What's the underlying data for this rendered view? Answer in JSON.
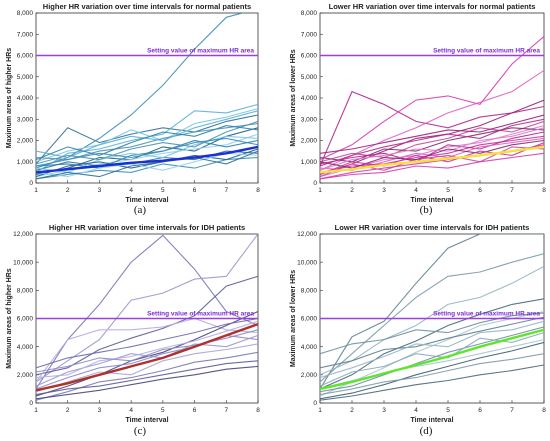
{
  "chart_data": [
    {
      "type": "line",
      "panel_label": "(a)",
      "title": "Higher HR variation over time intervals for normal patients",
      "xlabel": "Time interval",
      "ylabel": "Maximum areas of higher HRs",
      "xlim": [
        1,
        8
      ],
      "ylim": [
        0,
        8000
      ],
      "yticks": [
        "0",
        "1,000",
        "2,000",
        "3,000",
        "4,000",
        "5,000",
        "6,000",
        "7,000",
        "8,000"
      ],
      "xticks": [
        "1",
        "2",
        "3",
        "4",
        "5",
        "6",
        "7",
        "8"
      ],
      "grid": false,
      "threshold": {
        "value": 6000,
        "label": "Setting value of maximum HR area",
        "color": "#9b3fe0"
      },
      "palette": [
        "#2f6f96",
        "#3b8cb8",
        "#5ab0d6",
        "#78c6e6",
        "#1d5f86",
        "#4b92ad",
        "#96d2ea",
        "#2a7fae"
      ],
      "series": [
        {
          "values": [
            900,
            2600,
            1900,
            2300,
            2600,
            2400,
            2900,
            3200
          ]
        },
        {
          "values": [
            700,
            1200,
            2100,
            3200,
            4600,
            6300,
            7800,
            8200
          ]
        },
        {
          "values": [
            500,
            1400,
            1600,
            2000,
            2300,
            3400,
            3300,
            3700
          ]
        },
        {
          "values": [
            1000,
            1500,
            1800,
            2500,
            2000,
            2800,
            3100,
            3500
          ]
        },
        {
          "values": [
            400,
            700,
            1200,
            1100,
            1700,
            1500,
            2200,
            2600
          ]
        },
        {
          "values": [
            1200,
            1100,
            1500,
            1700,
            2100,
            2400,
            2600,
            2800
          ]
        },
        {
          "values": [
            300,
            600,
            900,
            1100,
            1400,
            1600,
            1800,
            2300
          ]
        },
        {
          "values": [
            800,
            900,
            700,
            1300,
            1500,
            2000,
            1700,
            2000
          ]
        },
        {
          "values": [
            600,
            1000,
            800,
            900,
            1200,
            1100,
            1500,
            1400
          ]
        },
        {
          "values": [
            200,
            400,
            600,
            500,
            900,
            700,
            1100,
            1200
          ]
        },
        {
          "values": [
            1500,
            1200,
            1800,
            2200,
            2000,
            2600,
            3000,
            3400
          ]
        },
        {
          "values": [
            700,
            500,
            1100,
            1400,
            1200,
            1800,
            2200,
            2100
          ]
        },
        {
          "values": [
            300,
            800,
            1000,
            700,
            1000,
            1300,
            1100,
            1600
          ]
        },
        {
          "values": [
            900,
            1300,
            1100,
            1600,
            1900,
            1700,
            2400,
            2900
          ]
        },
        {
          "values": [
            500,
            300,
            700,
            900,
            600,
            1000,
            1400,
            1300
          ]
        },
        {
          "values": [
            1100,
            1700,
            1300,
            1900,
            2400,
            2200,
            2700,
            2500
          ]
        },
        {
          "values": [
            200,
            500,
            300,
            800,
            1000,
            1200,
            900,
            1500
          ]
        },
        {
          "values": [
            800,
            1100,
            1400,
            1200,
            1500,
            1900,
            2100,
            1800
          ]
        }
      ],
      "mean": {
        "values": [
          500,
          650,
          800,
          950,
          1050,
          1200,
          1400,
          1700
        ],
        "color": "#1a2fd4"
      }
    },
    {
      "type": "line",
      "panel_label": "(b)",
      "title": "Lower HR variation over time intervals for normal patients",
      "xlabel": "Time interval",
      "ylabel": "Maximum areas of lower HRs",
      "xlim": [
        1,
        8
      ],
      "ylim": [
        0,
        8000
      ],
      "yticks": [
        "0",
        "1,000",
        "2,000",
        "3,000",
        "4,000",
        "5,000",
        "6,000",
        "7,000",
        "8,000"
      ],
      "xticks": [
        "1",
        "2",
        "3",
        "4",
        "5",
        "6",
        "7",
        "8"
      ],
      "grid": false,
      "threshold": {
        "value": 6000,
        "label": "Setting value of maximum HR area",
        "color": "#9b3fe0"
      },
      "palette": [
        "#b0288f",
        "#d53bb0",
        "#e25ec3",
        "#9a1f7c",
        "#c8499f",
        "#e07acc",
        "#7d2a6a",
        "#d12f9e"
      ],
      "series": [
        {
          "values": [
            800,
            4300,
            3700,
            2900,
            2600,
            3100,
            3300,
            3600
          ]
        },
        {
          "values": [
            1100,
            1800,
            2900,
            3900,
            4100,
            3700,
            5600,
            6900
          ]
        },
        {
          "values": [
            600,
            1300,
            2000,
            2600,
            3300,
            3800,
            4300,
            5300
          ]
        },
        {
          "values": [
            400,
            900,
            1500,
            2100,
            2300,
            2700,
            3300,
            3900
          ]
        },
        {
          "values": [
            1000,
            1400,
            1200,
            1800,
            2100,
            2600,
            2400,
            2900
          ]
        },
        {
          "values": [
            300,
            700,
            1100,
            1300,
            1700,
            1900,
            2300,
            2700
          ]
        },
        {
          "values": [
            1200,
            1000,
            1600,
            1500,
            2000,
            2300,
            2600,
            2500
          ]
        },
        {
          "values": [
            500,
            800,
            900,
            1200,
            1400,
            1800,
            2000,
            2200
          ]
        },
        {
          "values": [
            900,
            1200,
            1400,
            1000,
            1800,
            1600,
            2100,
            2400
          ]
        },
        {
          "values": [
            200,
            500,
            700,
            900,
            1100,
            1300,
            1500,
            1800
          ]
        },
        {
          "values": [
            700,
            600,
            1000,
            1400,
            1200,
            1700,
            1900,
            2100
          ]
        },
        {
          "values": [
            1400,
            1600,
            1900,
            2200,
            2500,
            2400,
            2800,
            3200
          ]
        },
        {
          "values": [
            300,
            900,
            600,
            1100,
            1300,
            1000,
            1700,
            1600
          ]
        },
        {
          "values": [
            600,
            1100,
            1300,
            1600,
            1500,
            2000,
            2200,
            2600
          ]
        },
        {
          "values": [
            1000,
            700,
            1200,
            1100,
            1600,
            1400,
            1800,
            2000
          ]
        },
        {
          "values": [
            400,
            1000,
            800,
            1300,
            1000,
            1500,
            1300,
            1900
          ]
        },
        {
          "values": [
            800,
            1300,
            1700,
            2000,
            2300,
            2100,
            2700,
            3000
          ]
        },
        {
          "values": [
            200,
            400,
            500,
            800,
            700,
            1000,
            1200,
            1400
          ]
        }
      ],
      "mean": {
        "values": [
          500,
          650,
          850,
          1000,
          1150,
          1300,
          1500,
          1700
        ],
        "color": "#f2e23a"
      }
    },
    {
      "type": "line",
      "panel_label": "(c)",
      "title": "Higher HR variation over time intervals for IDH patients",
      "xlabel": "Time interval",
      "ylabel": "Maximum areas of higher HRs",
      "xlim": [
        1,
        8
      ],
      "ylim": [
        0,
        12000
      ],
      "yticks": [
        "0",
        "2,000",
        "4,000",
        "6,000",
        "8,000",
        "10,000",
        "12,000"
      ],
      "xticks": [
        "1",
        "2",
        "3",
        "4",
        "5",
        "6",
        "7",
        "8"
      ],
      "grid": false,
      "threshold": {
        "value": 6000,
        "label": "Setting value of maximum HR area",
        "color": "#9b3fe0"
      },
      "palette": [
        "#7b76b8",
        "#9a95cf",
        "#5c5a99",
        "#b3aee0",
        "#46447f",
        "#8c88c4",
        "#a7a3d6",
        "#6d69ab"
      ],
      "series": [
        {
          "values": [
            1000,
            4500,
            7000,
            10000,
            11900,
            9500,
            6500,
            5500
          ]
        },
        {
          "values": [
            1500,
            3000,
            4500,
            7300,
            7800,
            8800,
            9000,
            12000
          ]
        },
        {
          "values": [
            2000,
            2500,
            3800,
            4600,
            5300,
            6200,
            8300,
            9000
          ]
        },
        {
          "values": [
            1500,
            4500,
            5200,
            5200,
            5400,
            6000,
            5200,
            5000
          ]
        },
        {
          "values": [
            500,
            1200,
            2000,
            3000,
            3600,
            4500,
            5500,
            6500
          ]
        },
        {
          "values": [
            1000,
            1800,
            2500,
            2800,
            3500,
            4000,
            4800,
            4500
          ]
        },
        {
          "values": [
            800,
            1500,
            2200,
            2000,
            3000,
            3500,
            3800,
            4200
          ]
        },
        {
          "values": [
            2500,
            3200,
            3600,
            4000,
            4500,
            5000,
            5600,
            6000
          ]
        },
        {
          "values": [
            200,
            800,
            1500,
            1800,
            2300,
            2900,
            3200,
            3600
          ]
        },
        {
          "values": [
            1200,
            2200,
            2800,
            3500,
            3200,
            4200,
            4000,
            4800
          ]
        },
        {
          "values": [
            600,
            1000,
            1200,
            1600,
            2000,
            2400,
            2800,
            3000
          ]
        },
        {
          "values": [
            1800,
            2000,
            3000,
            3300,
            3900,
            4400,
            5100,
            5800
          ]
        },
        {
          "values": [
            300,
            600,
            900,
            1300,
            1700,
            2000,
            2400,
            2600
          ]
        },
        {
          "values": [
            2200,
            2600,
            3200,
            3000,
            3800,
            4100,
            4600,
            5200
          ]
        }
      ],
      "mean": {
        "values": [
          900,
          1400,
          2000,
          2600,
          3200,
          4000,
          4800,
          5600
        ],
        "color": "#b0302a"
      }
    },
    {
      "type": "line",
      "panel_label": "(d)",
      "title": "Lower HR variation over time intervals for IDH patients",
      "xlabel": "Time interval",
      "ylabel": "Maximum areas of lower HRs",
      "xlim": [
        1,
        8
      ],
      "ylim": [
        0,
        12000
      ],
      "yticks": [
        "0",
        "2,000",
        "4,000",
        "6,000",
        "8,000",
        "10,000",
        "12,000"
      ],
      "xticks": [
        "1",
        "2",
        "3",
        "4",
        "5",
        "6",
        "7",
        "8"
      ],
      "grid": false,
      "threshold": {
        "value": 6000,
        "label": "Setting value of maximum HR area",
        "color": "#9b3fe0"
      },
      "palette": [
        "#5f7f8f",
        "#7b9aab",
        "#94b4c4",
        "#46687a",
        "#a9c4d2",
        "#6f8fa0",
        "#88a8b8",
        "#3e5e70"
      ],
      "series": [
        {
          "values": [
            1000,
            4700,
            5800,
            8500,
            11000,
            12000,
            12000,
            12000
          ]
        },
        {
          "values": [
            1500,
            3500,
            5500,
            7500,
            9000,
            9300,
            10000,
            10600
          ]
        },
        {
          "values": [
            2000,
            3000,
            4500,
            5500,
            7000,
            7500,
            8500,
            9700
          ]
        },
        {
          "values": [
            1000,
            2000,
            3500,
            4400,
            5500,
            6300,
            7000,
            7400
          ]
        },
        {
          "values": [
            500,
            1500,
            2500,
            3600,
            4500,
            5500,
            6000,
            6500
          ]
        },
        {
          "values": [
            800,
            1200,
            2000,
            2800,
            3600,
            4200,
            4800,
            5400
          ]
        },
        {
          "values": [
            1200,
            2200,
            2600,
            3500,
            3200,
            4600,
            4300,
            5000
          ]
        },
        {
          "values": [
            300,
            700,
            1300,
            2000,
            2600,
            3200,
            3700,
            4300
          ]
        },
        {
          "values": [
            2500,
            3000,
            3800,
            4000,
            4600,
            5100,
            5600,
            6100
          ]
        },
        {
          "values": [
            600,
            1000,
            1500,
            1800,
            2300,
            2800,
            3100,
            3500
          ]
        },
        {
          "values": [
            1800,
            2500,
            3300,
            4200,
            4000,
            5000,
            5200,
            5800
          ]
        },
        {
          "values": [
            200,
            500,
            900,
            1300,
            1600,
            2000,
            2300,
            2700
          ]
        },
        {
          "values": [
            1000,
            1600,
            2100,
            2600,
            3000,
            3500,
            4000,
            4500
          ]
        },
        {
          "values": [
            3500,
            4200,
            4500,
            5200,
            5000,
            5700,
            6200,
            6400
          ]
        }
      ],
      "mean": {
        "values": [
          1000,
          1500,
          2100,
          2700,
          3300,
          4000,
          4600,
          5200
        ],
        "color": "#5ee62d"
      }
    }
  ]
}
